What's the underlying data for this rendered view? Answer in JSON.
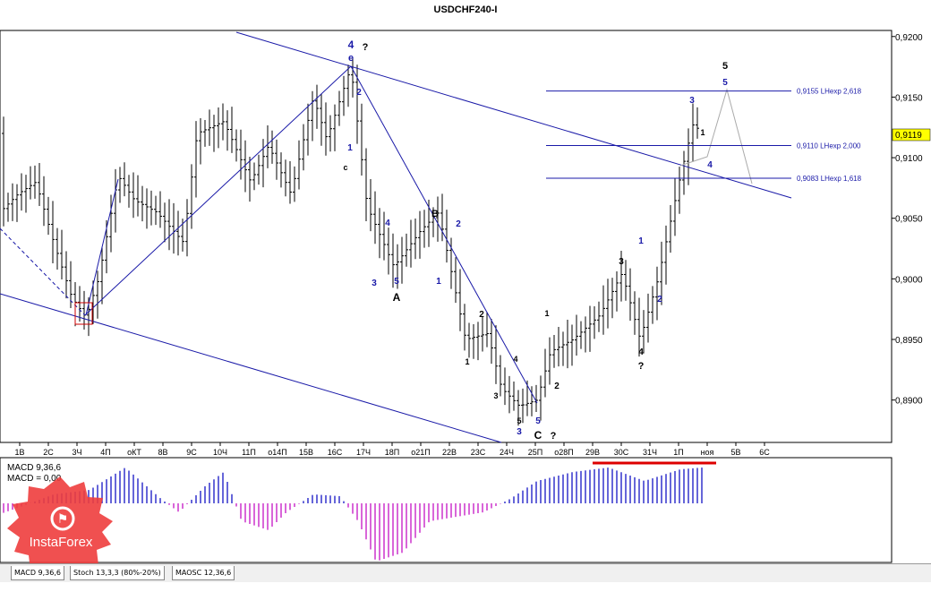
{
  "chart_data": {
    "type": "candlestick",
    "title": "USDCHF240-I",
    "y_axis_ticks": [
      "0,9200",
      "0,9150",
      "0,9100",
      "0,9050",
      "0,9000",
      "0,8950",
      "0,8900"
    ],
    "y_range": [
      0.8865,
      0.9205
    ],
    "current_price": "0,9119",
    "x_axis_labels": [
      "1В",
      "2С",
      "3Ч",
      "4П",
      "оКТ",
      "8В",
      "9С",
      "10Ч",
      "11П",
      "о14П",
      "15В",
      "16С",
      "17Ч",
      "18П",
      "о21П",
      "22В",
      "23С",
      "24Ч",
      "25П",
      "о28П",
      "29В",
      "30С",
      "31Ч",
      "1П",
      "ноя",
      "5В",
      "6С"
    ],
    "fib_levels": [
      {
        "label": "0,9155 LHexp 2,618",
        "price": 0.9155
      },
      {
        "label": "0,9110 LHexp 2,000",
        "price": 0.911
      },
      {
        "label": "0,9083 LHexp 1,618",
        "price": 0.9083
      }
    ],
    "wave_labels": [
      "4",
      "e",
      "?",
      "2",
      "1",
      "c",
      "4",
      "5",
      "3",
      "1",
      "B",
      "2",
      "A",
      "2",
      "1",
      "3",
      "4",
      "5",
      "5",
      "3",
      "C",
      "?",
      "1",
      "2",
      "3",
      "4",
      "?",
      "1",
      "2",
      "3",
      "4",
      "5",
      "5",
      "1"
    ],
    "indicator": {
      "name": "MACD",
      "label_line1": "MACD 9,36,6",
      "label_line2": "MACD = 0,00",
      "histogram_trend": "positive-then-negative-then-positive"
    }
  },
  "tabs": [
    "MACD 9,36,6",
    "Stoch 13,3,3 (80%-20%)",
    "MAOSC 12,36,6"
  ],
  "watermark": {
    "brand": "InstaForex"
  },
  "colors": {
    "candle": "#000000",
    "trend_line": "#1a1aa8",
    "fib_line": "#1a1aa8",
    "macd_pos": "#3333cc",
    "macd_neg": "#cc33cc",
    "red_line": "#dd0000",
    "logo": "#ee3d3d"
  }
}
